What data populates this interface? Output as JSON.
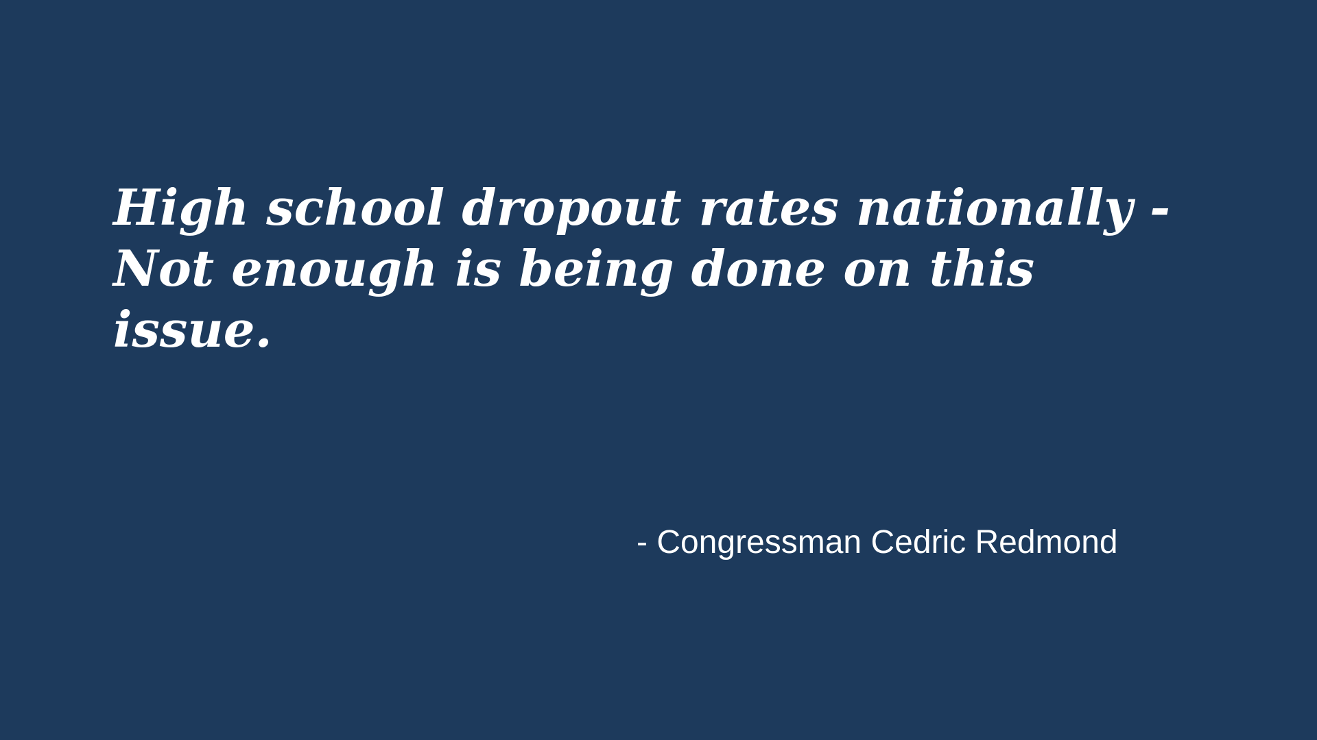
{
  "slide": {
    "background_color": "#1d3a5c",
    "text_color": "#ffffff",
    "quote_lines": [
      "High school dropout rates nationally -",
      "Not enough is being done on this",
      "issue."
    ],
    "attribution": "- Congressman Cedric Redmond"
  }
}
